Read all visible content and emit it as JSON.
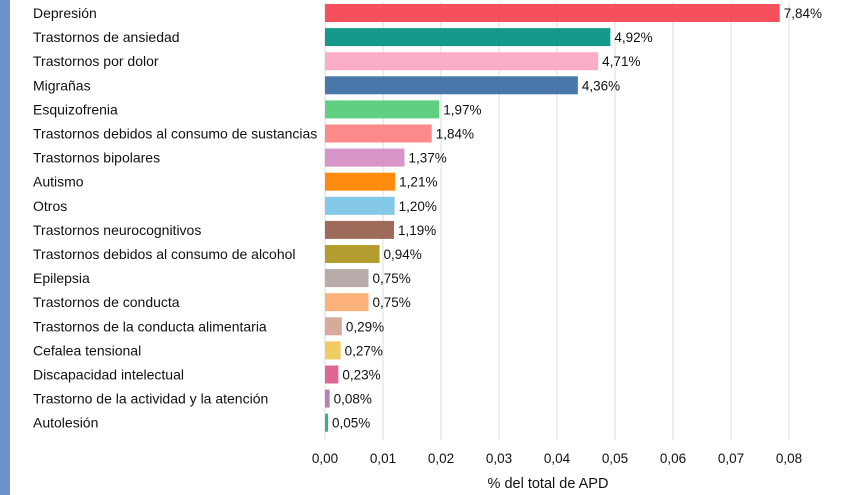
{
  "chart_data": {
    "type": "bar",
    "orientation": "horizontal",
    "categories": [
      "Depresión",
      "Trastornos de ansiedad",
      "Trastornos por dolor",
      "Migrañas",
      "Esquizofrenia",
      "Trastornos debidos al consumo de sustancias",
      "Trastornos bipolares",
      "Autismo",
      "Otros",
      "Trastornos neurocognitivos",
      "Trastornos debidos al consumo de alcohol",
      "Epilepsia",
      "Trastornos de conducta",
      "Trastornos de la conducta alimentaria",
      "Cefalea tensional",
      "Discapacidad intelectual",
      "Trastorno de la actividad y la atención",
      "Autolesión"
    ],
    "values": [
      0.0784,
      0.0492,
      0.0471,
      0.0436,
      0.0197,
      0.0184,
      0.0137,
      0.0121,
      0.012,
      0.0119,
      0.0094,
      0.0075,
      0.0075,
      0.0029,
      0.0027,
      0.0023,
      0.0008,
      0.0005
    ],
    "value_labels": [
      "7,84%",
      "4,92%",
      "4,71%",
      "4,36%",
      "1,97%",
      "1,84%",
      "1,37%",
      "1,21%",
      "1,20%",
      "1,19%",
      "0,94%",
      "0,75%",
      "0,75%",
      "0,29%",
      "0,27%",
      "0,23%",
      "0,08%",
      "0,05%"
    ],
    "colors": [
      "#f7505c",
      "#14998c",
      "#fcaec8",
      "#4a77a9",
      "#5fcf80",
      "#fd8a8a",
      "#d895c7",
      "#fd8c0f",
      "#84c8e8",
      "#9c6b59",
      "#b49c2f",
      "#b9abaa",
      "#fdb27c",
      "#d8aa9c",
      "#f1cc62",
      "#e06593",
      "#b781b5",
      "#35b577"
    ],
    "xlim": [
      0,
      0.085
    ],
    "xticks": [
      "0,00",
      "0,01",
      "0,02",
      "0,03",
      "0,04",
      "0,05",
      "0,06",
      "0,07",
      "0,08"
    ],
    "xlabel": "% del total de APD",
    "title": "",
    "grid": "vertical"
  }
}
